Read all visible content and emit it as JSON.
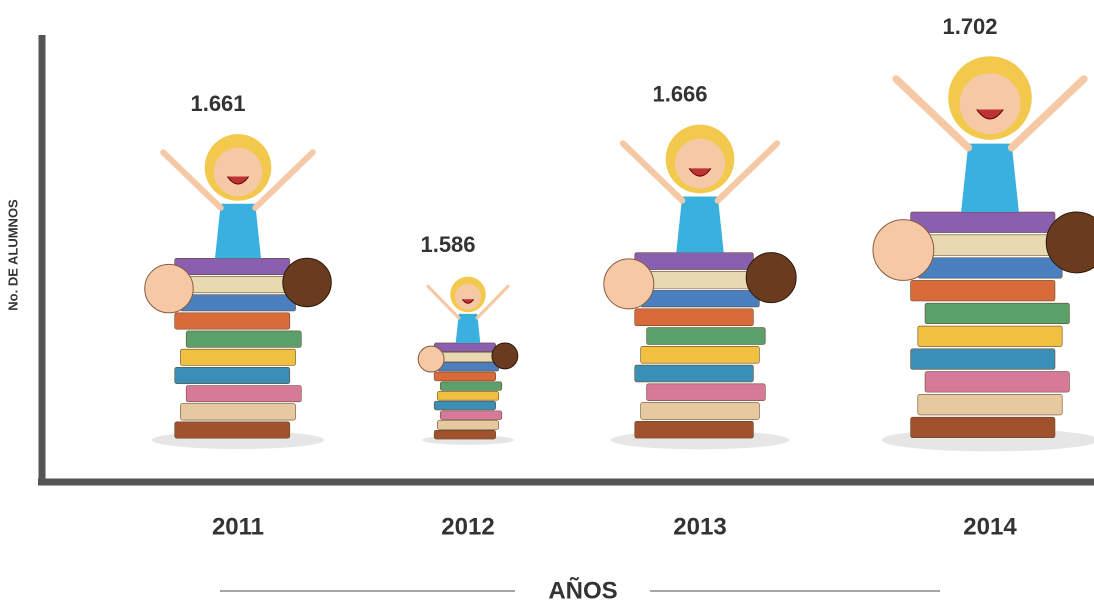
{
  "chart_data": {
    "type": "pictograph",
    "y_label": "No. DE ALUMNOS",
    "x_label": "AÑOS",
    "categories": [
      "2011",
      "2012",
      "2013",
      "2014"
    ],
    "values": [
      1661,
      1586,
      1666,
      1702
    ],
    "value_labels": [
      "1.661",
      "1.586",
      "1.666",
      "1.702"
    ],
    "ylim": [
      1500,
      1710
    ]
  }
}
